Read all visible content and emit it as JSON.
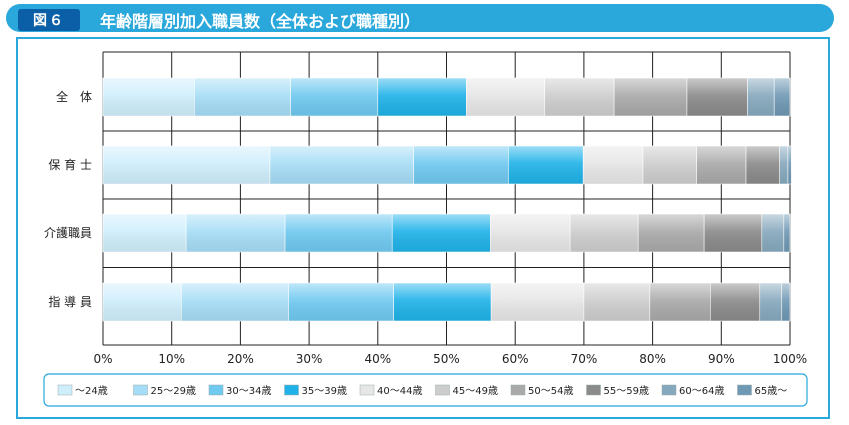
{
  "header": {
    "figure_label": "図６",
    "title": "年齢階層別加入職員数（全体および職種別）"
  },
  "colors": {
    "header_bg": "#2aa8dc",
    "label_bg": "#0b5fa6",
    "segments": [
      "#cfeefc",
      "#a6ddf6",
      "#6fc9f0",
      "#1fb2e8",
      "#e6e6e6",
      "#cdcdcd",
      "#a9a9a9",
      "#8a8a8a",
      "#86a8bd",
      "#6f98b3"
    ]
  },
  "chart_data": {
    "type": "bar",
    "orientation": "horizontal",
    "stacked": true,
    "categories": [
      "全　体",
      "保 育 士",
      "介護職員",
      "指 導 員"
    ],
    "x_ticks": [
      "0%",
      "10%",
      "20%",
      "30%",
      "40%",
      "50%",
      "60%",
      "70%",
      "80%",
      "90%",
      "100%"
    ],
    "xlim": [
      0,
      100
    ],
    "grid": true,
    "legend_position": "bottom",
    "series": [
      {
        "name": "～24歳",
        "values": [
          13.3,
          24.3,
          12.1,
          11.4
        ]
      },
      {
        "name": "25～29歳",
        "values": [
          14.0,
          20.9,
          14.4,
          15.6
        ]
      },
      {
        "name": "30～34歳",
        "values": [
          12.7,
          13.8,
          15.6,
          15.3
        ]
      },
      {
        "name": "35～39歳",
        "values": [
          12.9,
          10.9,
          14.3,
          14.2
        ]
      },
      {
        "name": "40～44歳",
        "values": [
          11.4,
          8.7,
          11.6,
          13.5
        ]
      },
      {
        "name": "45～49歳",
        "values": [
          10.1,
          7.8,
          9.9,
          9.6
        ]
      },
      {
        "name": "50～54歳",
        "values": [
          10.6,
          7.2,
          9.6,
          8.8
        ]
      },
      {
        "name": "55～59歳",
        "values": [
          8.8,
          4.9,
          8.4,
          7.2
        ]
      },
      {
        "name": "60～64歳",
        "values": [
          3.9,
          1.2,
          3.2,
          3.2
        ]
      },
      {
        "name": "65歳～",
        "values": [
          2.3,
          0.5,
          0.9,
          1.2
        ]
      }
    ]
  }
}
